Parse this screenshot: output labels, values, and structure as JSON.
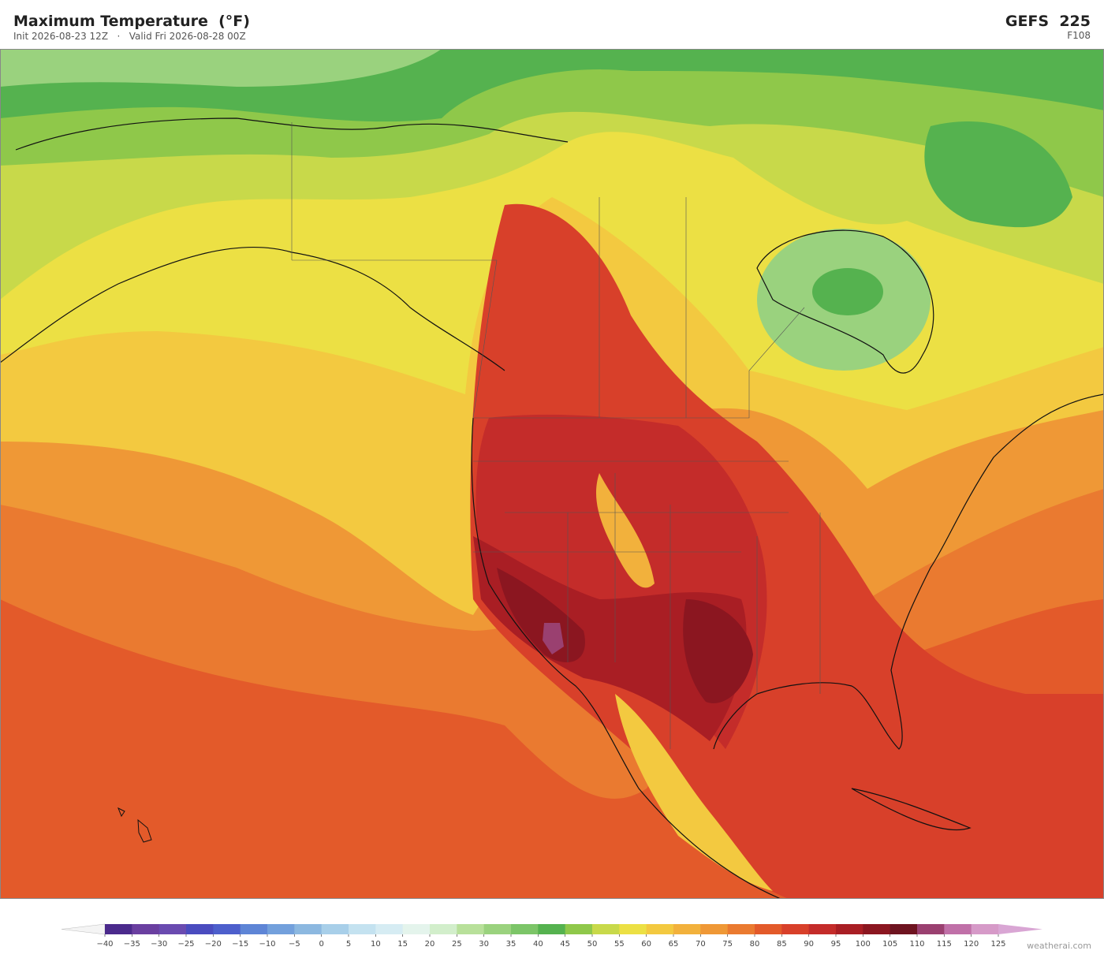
{
  "header": {
    "title": "Maximum Temperature  (°F)",
    "init": "Init 2026-08-23 12Z",
    "separator": "·",
    "valid": "Valid Fri 2026-08-28 00Z",
    "model": "GEFS  225",
    "forecast_hour": "F108"
  },
  "colorbar": {
    "ticks": [
      {
        "value": -40,
        "label": "−40"
      },
      {
        "value": -35,
        "label": "−35"
      },
      {
        "value": -30,
        "label": "−30"
      },
      {
        "value": -25,
        "label": "−25"
      },
      {
        "value": -20,
        "label": "−20"
      },
      {
        "value": -15,
        "label": "−15"
      },
      {
        "value": -10,
        "label": "−10"
      },
      {
        "value": -5,
        "label": "−5"
      },
      0,
      5,
      10,
      15,
      20,
      25,
      30,
      35,
      40,
      45,
      50,
      55,
      60,
      65,
      70,
      75,
      80,
      85,
      90,
      95,
      100,
      105,
      110,
      115,
      120,
      125
    ],
    "colors": [
      "#4b2a8c",
      "#6a3fa0",
      "#6a4bb0",
      "#4a4cbf",
      "#4d5fcc",
      "#5e85d6",
      "#73a0dc",
      "#8cb8e0",
      "#a8cfe9",
      "#c4e2f0",
      "#d6ecf3",
      "#e4f4ec",
      "#d2eecb",
      "#b8e09a",
      "#9ad27e",
      "#7cc568",
      "#55b24f",
      "#8fc84a",
      "#c8d94a",
      "#ece044",
      "#f3c940",
      "#f2b13c",
      "#ef9836",
      "#ea7a30",
      "#e35a2a",
      "#d8402a",
      "#c42c2a",
      "#a91e24",
      "#8b1620",
      "#6e1420",
      "#9a4070",
      "#c070a8",
      "#d69ac8"
    ],
    "under_color": "#f4f4f4",
    "over_color": "#d9a6d4"
  },
  "watermark": "weatherai.com"
}
